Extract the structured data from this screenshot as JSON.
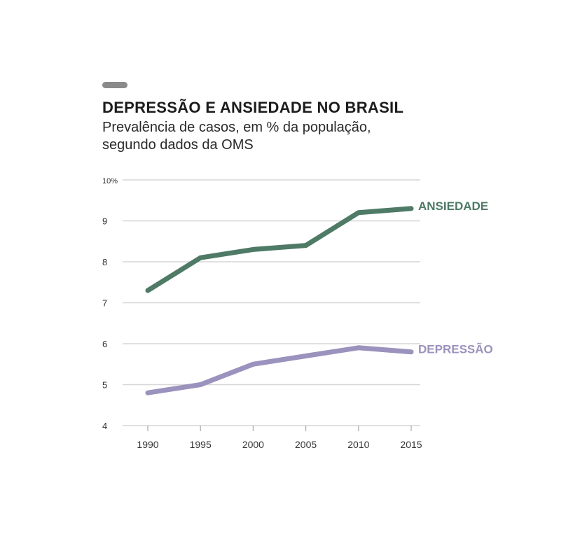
{
  "header": {
    "title": "DEPRESSÃO E ANSIEDADE NO BRASIL",
    "subtitle_line1": "Prevalência de casos, em % da população,",
    "subtitle_line2": "segundo dados da OMS"
  },
  "colors": {
    "ansiedade": "#4e7a66",
    "depressao": "#9b92bd",
    "grid": "#d6d6d6",
    "accent": "#8a8a8a"
  },
  "chart_data": {
    "type": "line",
    "title": "DEPRESSÃO E ANSIEDADE NO BRASIL",
    "subtitle": "Prevalência de casos, em % da população, segundo dados da OMS",
    "x": [
      1990,
      1995,
      2000,
      2005,
      2010,
      2015
    ],
    "x_tick_labels": [
      "1990",
      "1995",
      "2000",
      "2005",
      "2010",
      "2015"
    ],
    "y_tick_values": [
      4,
      5,
      6,
      7,
      8,
      9,
      10
    ],
    "y_tick_labels": [
      "4",
      "5",
      "6",
      "7",
      "8",
      "9",
      "10%"
    ],
    "ylim": [
      4,
      10
    ],
    "grid": true,
    "series": [
      {
        "name": "ANSIEDADE",
        "color": "#4e7a66",
        "values": [
          7.3,
          8.1,
          8.3,
          8.4,
          9.2,
          9.3
        ]
      },
      {
        "name": "DEPRESSÃO",
        "color": "#9b92bd",
        "values": [
          4.8,
          5.0,
          5.5,
          5.7,
          5.9,
          5.8
        ]
      }
    ],
    "legend": "inline-right"
  }
}
